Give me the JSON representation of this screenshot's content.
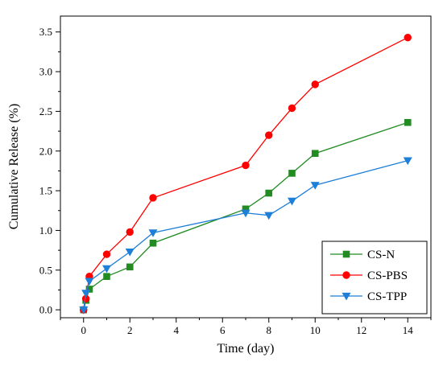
{
  "chart_data": {
    "type": "line",
    "title": "",
    "xlabel": "Time (day)",
    "ylabel": "Cumulative Release (%)",
    "xlim": [
      -1,
      15
    ],
    "ylim": [
      -0.1,
      3.7
    ],
    "x_ticks": [
      0,
      2,
      4,
      6,
      8,
      10,
      12,
      14
    ],
    "y_ticks": [
      0.0,
      0.5,
      1.0,
      1.5,
      2.0,
      2.5,
      3.0,
      3.5
    ],
    "x_tick_labels": [
      "0",
      "2",
      "4",
      "6",
      "8",
      "10",
      "12",
      "14"
    ],
    "y_tick_labels": [
      "0.0",
      "0.5",
      "1.0",
      "1.5",
      "2.0",
      "2.5",
      "3.0",
      "3.5"
    ],
    "grid": false,
    "legend_position": "bottom-right",
    "series": [
      {
        "name": "CS-N",
        "color": "#228B22",
        "marker": "square",
        "x": [
          0,
          0.1,
          0.25,
          1,
          2,
          3,
          7,
          8,
          9,
          10,
          14
        ],
        "y": [
          0.0,
          0.12,
          0.26,
          0.42,
          0.54,
          0.84,
          1.27,
          1.47,
          1.72,
          1.97,
          2.36
        ]
      },
      {
        "name": "CS-PBS",
        "color": "#FF0000",
        "marker": "circle",
        "x": [
          0,
          0.1,
          0.25,
          1,
          2,
          3,
          7,
          8,
          9,
          10,
          14
        ],
        "y": [
          0.0,
          0.14,
          0.42,
          0.7,
          0.98,
          1.41,
          1.82,
          2.2,
          2.54,
          2.84,
          3.43
        ]
      },
      {
        "name": "CS-TPP",
        "color": "#1E7FD8",
        "marker": "triangle-down",
        "x": [
          0,
          0.1,
          0.25,
          1,
          2,
          3,
          7,
          8,
          9,
          10,
          14
        ],
        "y": [
          0.0,
          0.21,
          0.36,
          0.52,
          0.73,
          0.97,
          1.22,
          1.19,
          1.37,
          1.57,
          1.88
        ]
      }
    ]
  }
}
